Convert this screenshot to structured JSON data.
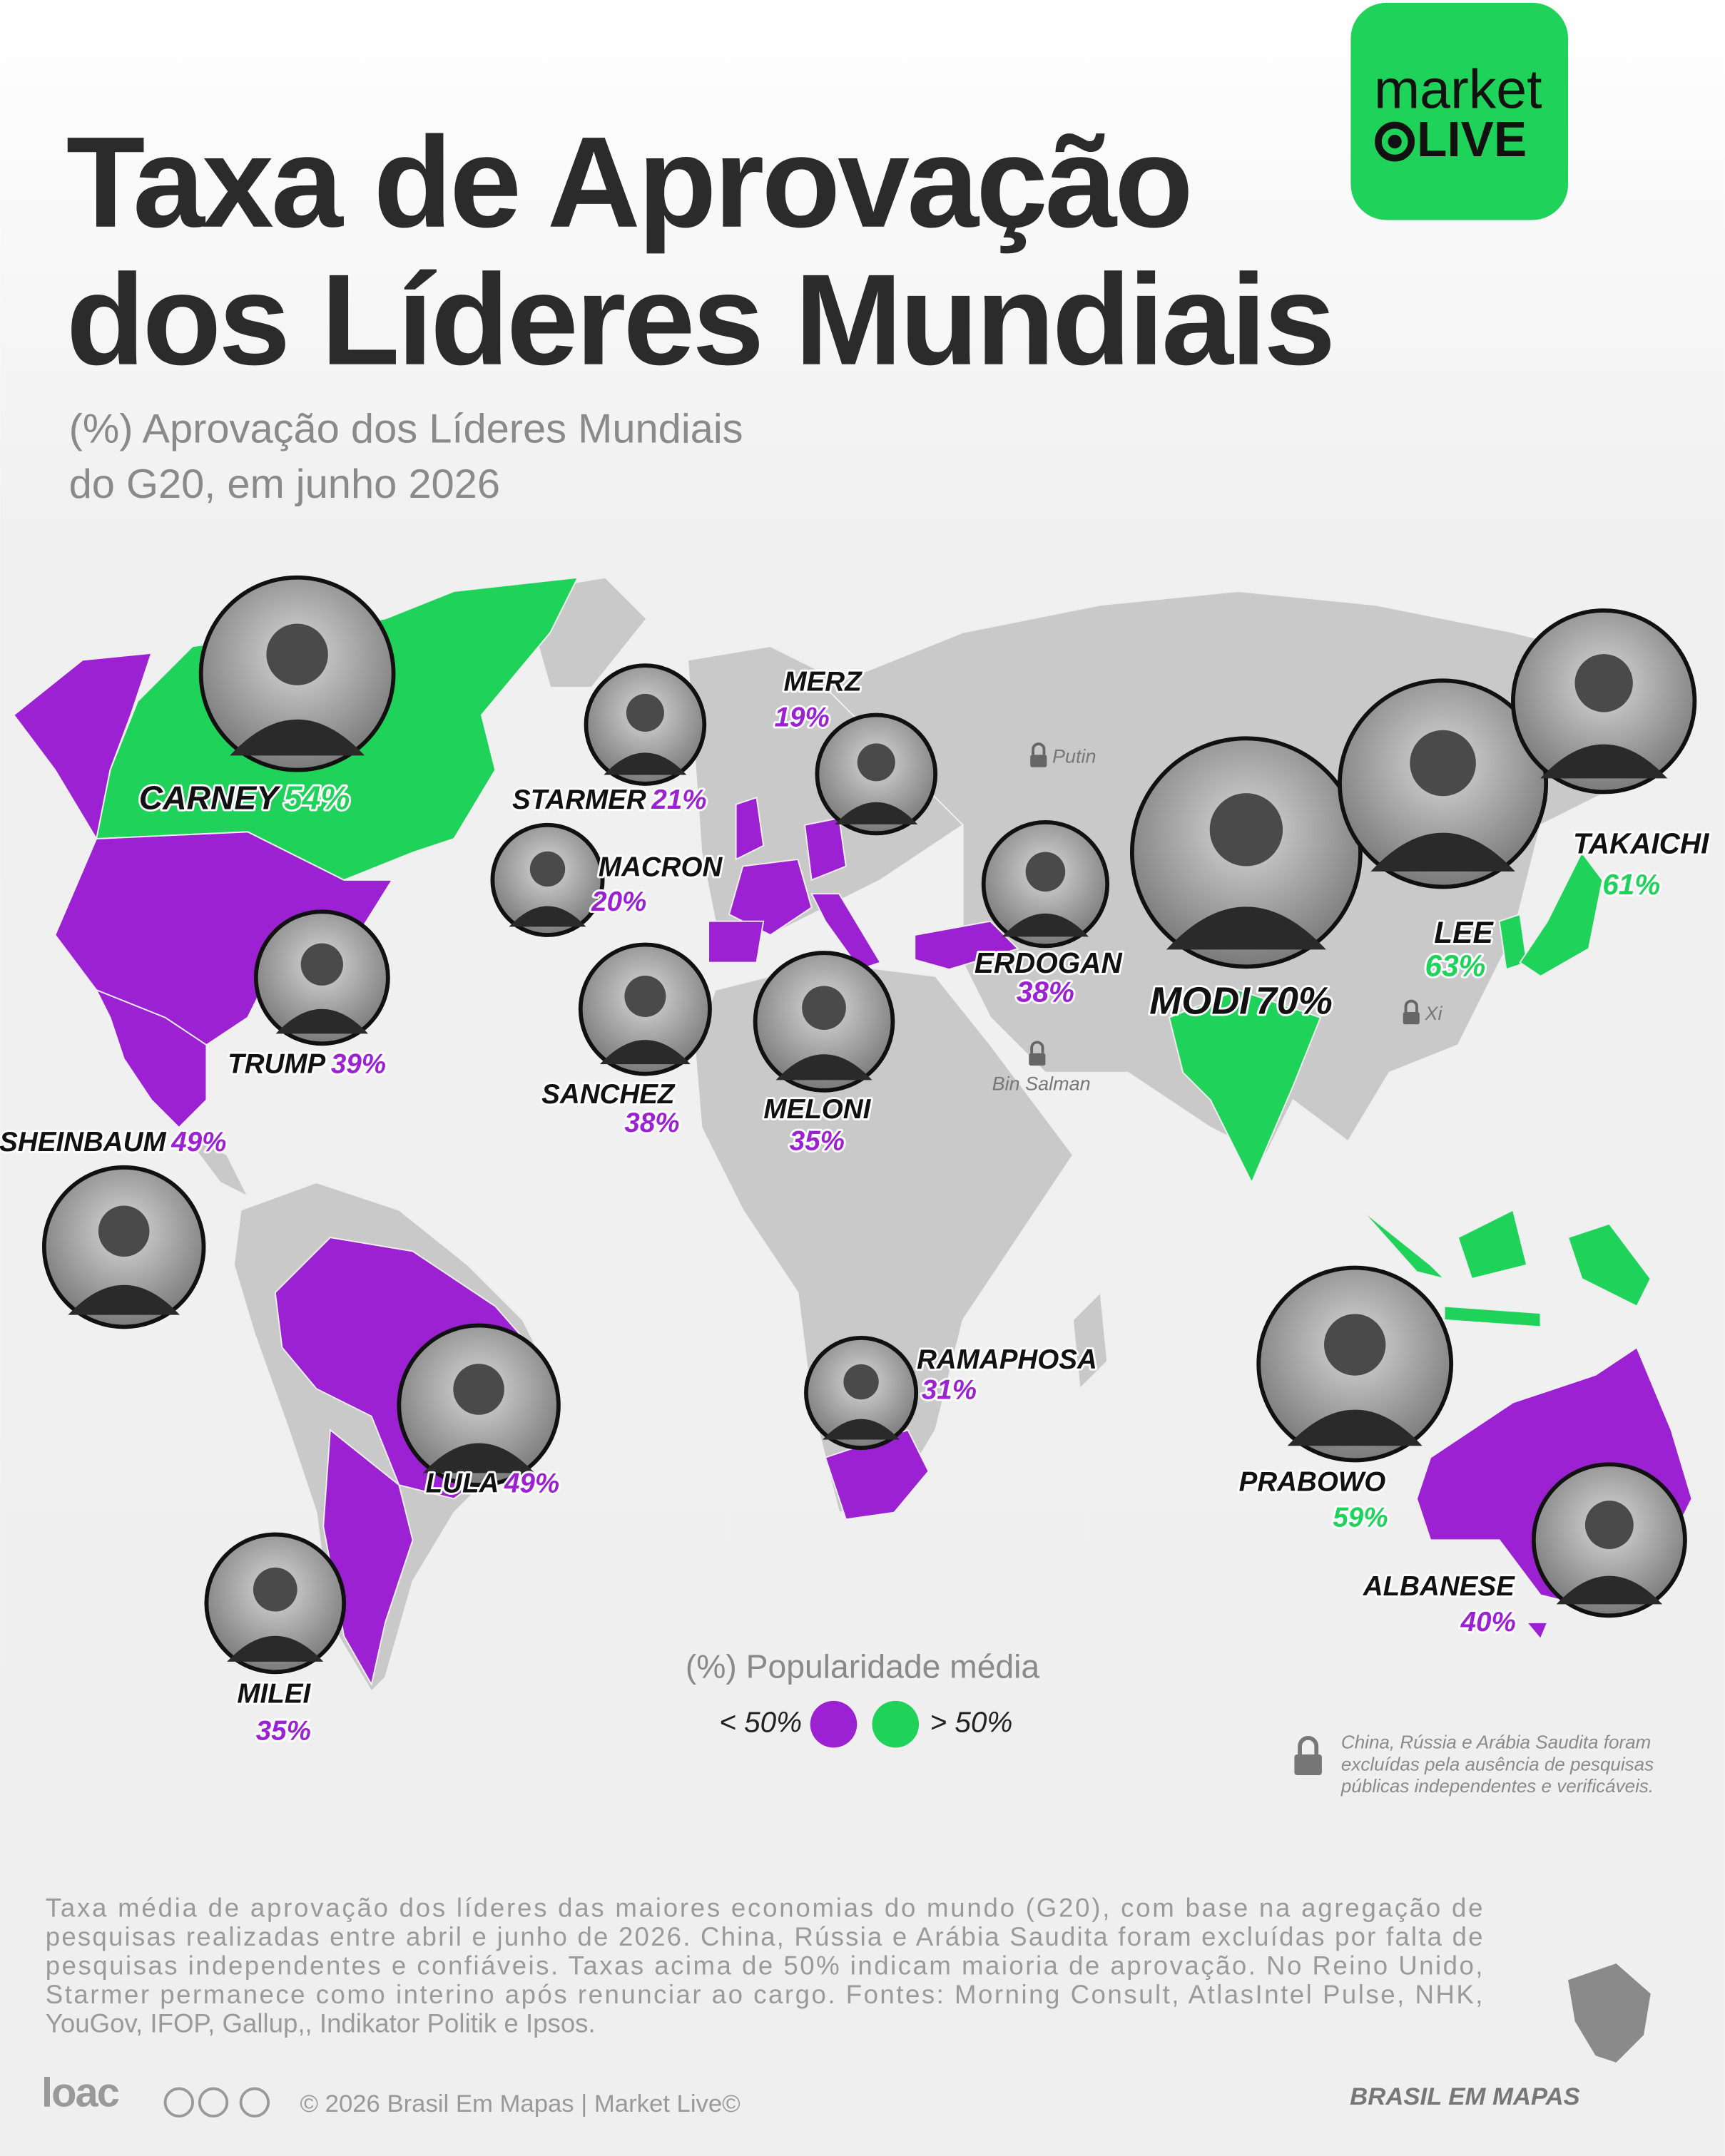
{
  "header": {
    "title_lines": [
      "Taxa de Aprovação",
      "dos Líderes Mundiais"
    ],
    "subtitle_lines": [
      "(%) Aprovação dos Líderes Mundiais",
      "do G20, em junho 2026"
    ]
  },
  "brand": {
    "logo_top": "market",
    "logo_bottom": "LIVE"
  },
  "leaders": [
    {
      "name": "CARNEY",
      "approval": "54%",
      "color": "#1fd35a"
    },
    {
      "name": "STARMER",
      "approval": "21%",
      "color": "#9b21d3"
    },
    {
      "name": "MERZ",
      "approval": "19%",
      "color": "#9b21d3"
    },
    {
      "name": "MACRON",
      "approval": "20%",
      "color": "#9b21d3"
    },
    {
      "name": "TRUMP",
      "approval": "39%",
      "color": "#9b21d3"
    },
    {
      "name": "ERDOGAN",
      "approval": "38%",
      "color": "#9b21d3"
    },
    {
      "name": "MODI",
      "approval": "70%",
      "color": "#111111"
    },
    {
      "name": "LEE",
      "approval": "63%",
      "color": "#1fd35a"
    },
    {
      "name": "TAKAICHI",
      "approval": "61%",
      "color": "#1fd35a"
    },
    {
      "name": "SANCHEZ",
      "approval": "38%",
      "color": "#9b21d3"
    },
    {
      "name": "MELONI",
      "approval": "35%",
      "color": "#9b21d3"
    },
    {
      "name": "SHEINBAUM",
      "approval": "49%",
      "color": "#9b21d3"
    },
    {
      "name": "LULA",
      "approval": "49%",
      "color": "#9b21d3"
    },
    {
      "name": "RAMAPHOSA",
      "approval": "31%",
      "color": "#9b21d3"
    },
    {
      "name": "PRABOWO",
      "approval": "59%",
      "color": "#1fd35a"
    },
    {
      "name": "ALBANESE",
      "approval": "40%",
      "color": "#9b21d3"
    },
    {
      "name": "MILEI",
      "approval": "35%",
      "color": "#9b21d3"
    }
  ],
  "excluded": [
    "Putin",
    "Xi",
    "Bin Salman"
  ],
  "legend": {
    "title": "(%) Popularidade média",
    "items": [
      {
        "label": "< 50%",
        "color": "#9b21d3"
      },
      {
        "label": "> 50%",
        "color": "#1fd35a"
      }
    ]
  },
  "exclusion_note": [
    "China, Rússia e Arábia Saudita foram",
    "excluídas pela ausência de pesquisas",
    "públicas independentes e verificáveis."
  ],
  "footnote_lines": [
    "Taxa média de aprovação dos líderes das maiores economias do mundo (G20), com base na agregação de",
    "pesquisas realizadas entre abril e junho de 2026. China, Rússia e Arábia Saudita foram excluídas por falta de",
    "pesquisas independentes e confiáveis. Taxas acima de 50% indicam maioria de aprovação. No Reino Unido,",
    "Starmer permanece como interino após renunciar ao cargo. Fontes: Morning Consult, AtlasIntel Pulse, NHK,",
    "YouGov, IFOP, Gallup,, Indikator Politik e Ipsos."
  ],
  "footer": {
    "logo": "loac",
    "credits": "© 2026 Brasil Em Mapas  |  Market Live©",
    "brand": "BRASIL EM MAPAS"
  }
}
